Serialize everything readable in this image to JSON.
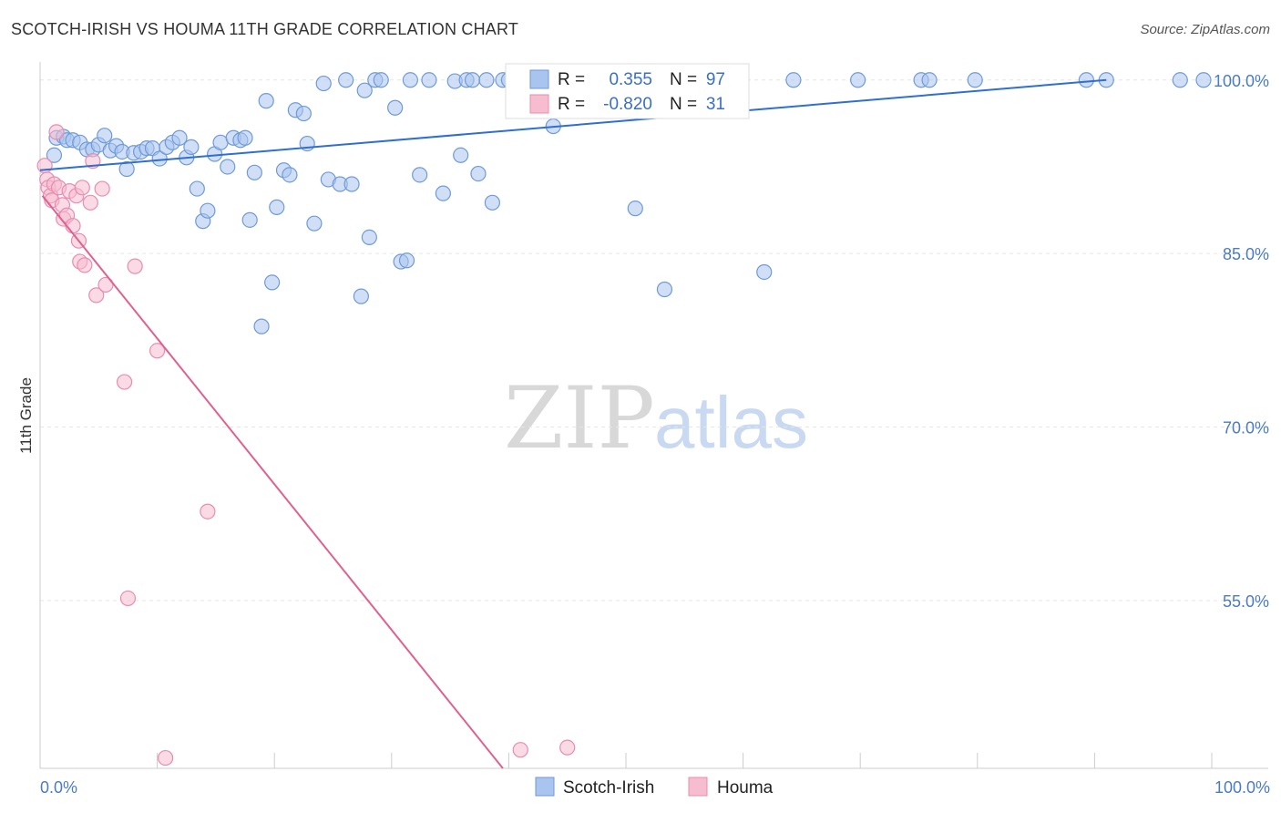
{
  "header": {
    "title": "SCOTCH-IRISH VS HOUMA 11TH GRADE CORRELATION CHART",
    "source": "Source: ZipAtlas.com"
  },
  "watermark": {
    "zip": "ZIP",
    "atlas": "atlas"
  },
  "colors": {
    "blue_fill": "#a9c4ee",
    "blue_stroke": "#6f9ad8",
    "blue_line": "#2f6fd0",
    "pink_fill": "#f6bcd0",
    "pink_stroke": "#e88db0",
    "pink_line": "#e0608f",
    "tick_text": "#4a7bc4",
    "grid": "#e6e6e6"
  },
  "legend": {
    "rows": [
      {
        "r_label": "R =",
        "r_value": "0.355",
        "n_label": "N =",
        "n_value": "97"
      },
      {
        "r_label": "R =",
        "r_value": "-0.820",
        "n_label": "N =",
        "n_value": "31"
      }
    ]
  },
  "bottom_legend": [
    "Scotch-Irish",
    "Houma"
  ],
  "chart_data": {
    "type": "scatter",
    "title": "SCOTCH-IRISH VS HOUMA 11TH GRADE CORRELATION CHART",
    "xlabel": "",
    "ylabel": "11th Grade",
    "xlim": [
      0,
      100
    ],
    "ylim": [
      40.5,
      101.4
    ],
    "x_tick_labels": [
      "0.0%",
      "100.0%"
    ],
    "y_ticks": [
      100,
      85,
      70,
      55
    ],
    "y_tick_labels": [
      "100.0%",
      "85.0%",
      "70.0%",
      "55.0%"
    ],
    "grid": true,
    "legend_position": "top-center",
    "series": [
      {
        "name": "Scotch-Irish",
        "stats": {
          "R": 0.355,
          "N": 97
        },
        "trend": {
          "x": [
            0.0,
            91.0
          ],
          "y": [
            92.2,
            100.0
          ]
        },
        "points": [
          [
            1.2,
            93.5
          ],
          [
            1.4,
            95.0
          ],
          [
            2.0,
            95.1
          ],
          [
            2.3,
            94.8
          ],
          [
            2.8,
            94.8
          ],
          [
            3.4,
            94.6
          ],
          [
            4.0,
            94.0
          ],
          [
            4.5,
            94.0
          ],
          [
            5.0,
            94.4
          ],
          [
            5.5,
            95.2
          ],
          [
            6.0,
            93.9
          ],
          [
            6.5,
            94.3
          ],
          [
            7.0,
            93.8
          ],
          [
            7.4,
            92.3
          ],
          [
            8.0,
            93.7
          ],
          [
            8.6,
            93.8
          ],
          [
            9.1,
            94.1
          ],
          [
            9.6,
            94.1
          ],
          [
            10.2,
            93.2
          ],
          [
            10.8,
            94.2
          ],
          [
            11.3,
            94.6
          ],
          [
            11.9,
            95.0
          ],
          [
            12.5,
            93.3
          ],
          [
            12.9,
            94.2
          ],
          [
            13.4,
            90.6
          ],
          [
            13.9,
            87.8
          ],
          [
            14.3,
            88.7
          ],
          [
            14.9,
            93.6
          ],
          [
            15.4,
            94.6
          ],
          [
            16.0,
            92.5
          ],
          [
            16.5,
            95.0
          ],
          [
            17.1,
            94.8
          ],
          [
            17.5,
            95.0
          ],
          [
            17.9,
            87.9
          ],
          [
            18.3,
            92.0
          ],
          [
            18.9,
            78.7
          ],
          [
            19.3,
            98.2
          ],
          [
            19.8,
            82.5
          ],
          [
            20.2,
            89.0
          ],
          [
            20.8,
            92.2
          ],
          [
            21.3,
            91.8
          ],
          [
            21.8,
            97.4
          ],
          [
            22.5,
            97.1
          ],
          [
            22.8,
            94.5
          ],
          [
            23.4,
            87.6
          ],
          [
            24.2,
            99.7
          ],
          [
            24.6,
            91.4
          ],
          [
            25.6,
            91.0
          ],
          [
            26.1,
            100.0
          ],
          [
            26.6,
            91.0
          ],
          [
            27.4,
            81.3
          ],
          [
            27.7,
            99.1
          ],
          [
            28.1,
            86.4
          ],
          [
            28.6,
            100.0
          ],
          [
            29.1,
            100.0
          ],
          [
            30.3,
            97.6
          ],
          [
            30.8,
            84.3
          ],
          [
            31.3,
            84.4
          ],
          [
            31.6,
            100.0
          ],
          [
            32.4,
            91.8
          ],
          [
            33.2,
            100.0
          ],
          [
            34.4,
            90.2
          ],
          [
            35.4,
            99.9
          ],
          [
            35.9,
            93.5
          ],
          [
            36.4,
            100.0
          ],
          [
            36.9,
            100.0
          ],
          [
            37.4,
            91.9
          ],
          [
            38.1,
            100.0
          ],
          [
            38.6,
            89.4
          ],
          [
            39.5,
            100.0
          ],
          [
            40.0,
            100.0
          ],
          [
            40.7,
            99.9
          ],
          [
            42.0,
            100.0
          ],
          [
            43.4,
            100.0
          ],
          [
            43.8,
            96.0
          ],
          [
            45.3,
            100.0
          ],
          [
            46.6,
            100.0
          ],
          [
            47.6,
            100.0
          ],
          [
            48.0,
            100.0
          ],
          [
            50.4,
            100.0
          ],
          [
            50.8,
            88.9
          ],
          [
            52.0,
            100.0
          ],
          [
            53.3,
            81.9
          ],
          [
            54.8,
            98.2
          ],
          [
            55.5,
            100.0
          ],
          [
            56.4,
            99.9
          ],
          [
            57.6,
            100.0
          ],
          [
            61.8,
            83.4
          ],
          [
            64.3,
            100.0
          ],
          [
            69.8,
            100.0
          ],
          [
            75.2,
            100.0
          ],
          [
            75.9,
            100.0
          ],
          [
            79.8,
            100.0
          ],
          [
            89.3,
            100.0
          ],
          [
            91.0,
            100.0
          ],
          [
            97.3,
            100.0
          ],
          [
            99.3,
            100.0
          ]
        ]
      },
      {
        "name": "Houma",
        "stats": {
          "R": -0.82,
          "N": 31
        },
        "trend": {
          "x": [
            0.2,
            39.5
          ],
          "y": [
            90.0,
            40.5
          ]
        },
        "points": [
          [
            0.4,
            92.6
          ],
          [
            0.6,
            91.4
          ],
          [
            0.7,
            90.7
          ],
          [
            0.9,
            90.0
          ],
          [
            1.0,
            89.6
          ],
          [
            1.2,
            91.0
          ],
          [
            1.4,
            95.5
          ],
          [
            1.6,
            90.7
          ],
          [
            1.9,
            89.2
          ],
          [
            2.0,
            88.0
          ],
          [
            2.3,
            88.3
          ],
          [
            2.5,
            90.4
          ],
          [
            2.8,
            87.4
          ],
          [
            3.1,
            90.0
          ],
          [
            3.3,
            86.1
          ],
          [
            3.4,
            84.3
          ],
          [
            3.6,
            90.7
          ],
          [
            3.8,
            84.0
          ],
          [
            4.3,
            89.4
          ],
          [
            4.5,
            93.0
          ],
          [
            4.8,
            81.4
          ],
          [
            5.3,
            90.6
          ],
          [
            5.6,
            82.3
          ],
          [
            7.2,
            73.9
          ],
          [
            7.5,
            55.2
          ],
          [
            8.1,
            83.9
          ],
          [
            10.0,
            76.6
          ],
          [
            10.7,
            41.4
          ],
          [
            14.3,
            62.7
          ],
          [
            41.0,
            42.1
          ],
          [
            45.0,
            42.3
          ]
        ]
      }
    ]
  }
}
